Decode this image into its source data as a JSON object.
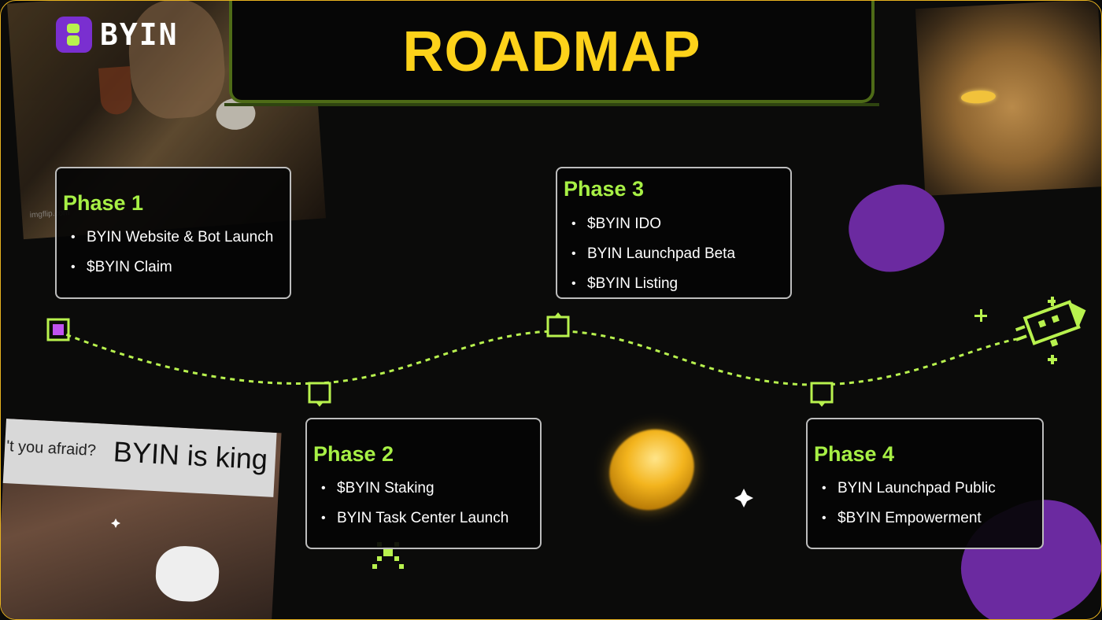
{
  "brand": {
    "logo_text": "BYIN",
    "accent": "#a7f045",
    "title_color": "#fdd21a",
    "border_color": "#e7b21f"
  },
  "title": "ROADMAP",
  "photos": {
    "bottom_left_caption_a": "'t you afraid?",
    "bottom_left_caption_b": "BYIN is king",
    "top_left_credit": "imgflip.com"
  },
  "phases": [
    {
      "title": "Phase 1",
      "items": [
        "BYIN Website & Bot Launch",
        "$BYIN Claim"
      ]
    },
    {
      "title": "Phase 2",
      "items": [
        "$BYIN Staking",
        "BYIN Task Center Launch"
      ]
    },
    {
      "title": "Phase 3",
      "items": [
        "$BYIN IDO",
        "BYIN Launchpad Beta",
        "$BYIN Listing"
      ]
    },
    {
      "title": "Phase 4",
      "items": [
        "BYIN Launchpad Public",
        "$BYIN Empowerment"
      ]
    }
  ],
  "icons": {
    "start_marker": "square-marker-icon",
    "phase_markers": "speech-bubble-marker-icon",
    "end": "rocket-icon",
    "sparkle": "sparkle-icon",
    "coin": "gold-coin-icon"
  }
}
